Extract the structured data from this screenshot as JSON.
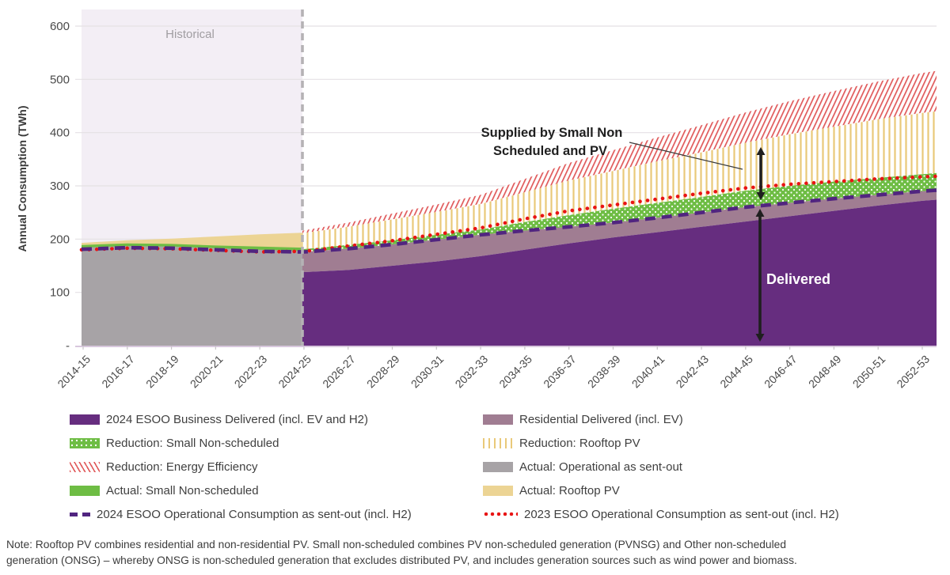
{
  "colors": {
    "purple": "#662d7f",
    "mauve": "#a07d92",
    "green": "#6ebd44",
    "tan": "#ecd494",
    "gray": "#a7a3a6",
    "yellow_hatch": "#e9c979",
    "red_hatch": "#e0595a",
    "red_line": "#e81414",
    "purple_line": "#512580",
    "hist_tint": "#f3eef5",
    "gridline": "#e4e1e4",
    "boundary": "#b5b2b5",
    "axis_line": "#d8c7dd",
    "arrow": "#1f1f1f",
    "tick_text": "#4a4a4a",
    "hist_label": "#a09da1"
  },
  "chart_data": {
    "type": "area",
    "ylabel": "Annual Consumption (TWh)",
    "ylim": [
      0,
      620
    ],
    "y_ticks": [
      600,
      500,
      400,
      300,
      200,
      100,
      0
    ],
    "y_tick_labels": [
      "600",
      "500",
      "400",
      "300",
      "200",
      "100",
      "-"
    ],
    "grid": "horizontal",
    "historical_label": "Historical",
    "x_categories": [
      "2014-15",
      "2016-17",
      "2018-19",
      "2020-21",
      "2022-23",
      "2024-25",
      "2026-27",
      "2028-29",
      "2030-31",
      "2032-33",
      "2034-35",
      "2036-37",
      "2038-39",
      "2040-41",
      "2042-43",
      "2044-45",
      "2046-47",
      "2048-49",
      "2050-51",
      "2052-53"
    ],
    "historical": {
      "years": [
        "2014-15",
        "2016-17",
        "2018-19",
        "2020-21",
        "2022-23",
        "2024-25"
      ],
      "actual_operational_sent_out_top": [
        184,
        187,
        186,
        183,
        180,
        178
      ],
      "actual_small_non_scheduled_top": [
        189,
        192,
        191,
        188,
        186,
        184
      ],
      "actual_rooftop_pv_top": [
        193,
        198,
        201,
        205,
        209,
        212
      ]
    },
    "forecast": {
      "years": [
        "2024-25",
        "2026-27",
        "2028-29",
        "2030-31",
        "2032-33",
        "2034-35",
        "2036-37",
        "2038-39",
        "2040-41",
        "2042-43",
        "2044-45",
        "2046-47",
        "2048-49",
        "2050-51",
        "2052-53"
      ],
      "business_delivered_top": [
        138,
        142,
        150,
        158,
        168,
        180,
        192,
        203,
        213,
        223,
        233,
        243,
        253,
        263,
        272
      ],
      "residential_delivered_top": [
        176,
        182,
        190,
        199,
        208,
        216,
        223,
        231,
        240,
        250,
        260,
        268,
        276,
        283,
        290
      ],
      "reduction_small_non_scheduled_top": [
        181,
        189,
        198,
        208,
        218,
        232,
        245,
        257,
        268,
        279,
        291,
        300,
        308,
        315,
        322
      ],
      "reduction_rooftop_pv_top": [
        211,
        223,
        237,
        251,
        266,
        288,
        310,
        328,
        346,
        363,
        381,
        397,
        411,
        425,
        437
      ],
      "reduction_energy_efficiency_top": [
        216,
        231,
        248,
        265,
        283,
        313,
        343,
        367,
        391,
        414,
        438,
        459,
        478,
        496,
        512
      ],
      "edge_values": {
        "business_delivered_top": 274,
        "residential_delivered_top": 292,
        "reduction_small_non_scheduled_top": 324,
        "reduction_rooftop_pv_top": 440,
        "reduction_energy_efficiency_top": 516
      }
    },
    "lines": {
      "esoo_2024_operational": [
        181,
        184,
        183,
        180,
        177,
        176,
        182,
        190,
        199,
        208,
        216,
        223,
        231,
        240,
        250,
        260,
        268,
        276,
        283,
        290
      ],
      "esoo_2023_operational": [
        180,
        183,
        182,
        179,
        176,
        177,
        187,
        197,
        209,
        221,
        238,
        253,
        264,
        275,
        286,
        296,
        303,
        308,
        313,
        317
      ],
      "edge_values": {
        "esoo_2024_operational": 292,
        "esoo_2023_operational": 318
      }
    },
    "annotations": {
      "supplied_line1": "Supplied by Small Non",
      "supplied_line2": "Scheduled and PV",
      "delivered": "Delivered"
    }
  },
  "legend": {
    "items": [
      {
        "label": "2024 ESOO Business Delivered (incl. EV and H2)",
        "swatch": "purple-solid"
      },
      {
        "label": "Residential Delivered (incl. EV)",
        "swatch": "mauve-solid"
      },
      {
        "label": "Reduction: Small Non-scheduled",
        "swatch": "green-dots"
      },
      {
        "label": "Reduction: Rooftop PV",
        "swatch": "yellow-vlines"
      },
      {
        "label": "Reduction: Energy Efficiency",
        "swatch": "red-hatch"
      },
      {
        "label": "Actual: Operational as sent-out",
        "swatch": "gray-solid"
      },
      {
        "label": "Actual: Small Non-scheduled",
        "swatch": "green-solid"
      },
      {
        "label": "Actual: Rooftop PV",
        "swatch": "tan-solid"
      },
      {
        "label": "2024 ESOO Operational Consumption as sent-out (incl. H2)",
        "swatch": "purple-dashed-line"
      },
      {
        "label": "2023 ESOO Operational Consumption as sent-out (incl. H2)",
        "swatch": "red-dotted-line"
      }
    ]
  },
  "note": {
    "line1": "Note: Rooftop PV combines residential and non-residential PV. Small non-scheduled combines PV non-scheduled generation (PVNSG) and Other non-scheduled",
    "line2": "generation (ONSG) – whereby ONSG is non-scheduled generation that excludes distributed PV, and includes generation sources such as wind power and biomass."
  }
}
